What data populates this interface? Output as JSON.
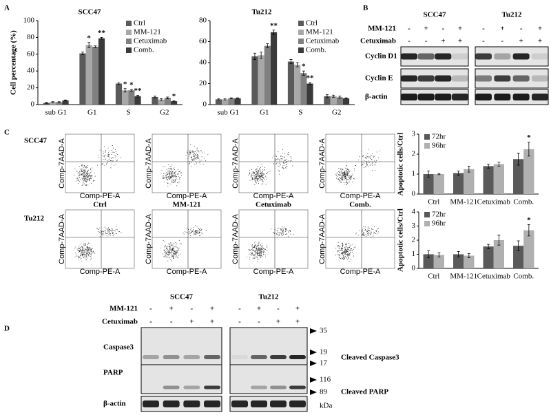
{
  "labels": [
    "A",
    "B",
    "C",
    "D"
  ],
  "chart_data": [
    {
      "type": "bar",
      "title": "SCC47",
      "ylabel": "Cell percentage (%)",
      "categories": [
        "sub G1",
        "G1",
        "S",
        "G2"
      ],
      "ylim": [
        0,
        100
      ],
      "yticks": [
        0,
        20,
        40,
        60,
        80,
        100
      ],
      "legend": "upper right",
      "series": [
        {
          "name": "Ctrl",
          "color": "#5a5a5a",
          "values": [
            2,
            61,
            25,
            9
          ],
          "errors": [
            0.5,
            1.5,
            1,
            1
          ],
          "labels": [
            null,
            null,
            null,
            null
          ]
        },
        {
          "name": "MM-121",
          "color": "#a8a8a8",
          "values": [
            3,
            71,
            17,
            6
          ],
          "errors": [
            0.5,
            3,
            2,
            1
          ],
          "labels": [
            null,
            "*",
            "*",
            null
          ]
        },
        {
          "name": "Cetuximab",
          "color": "#808080",
          "values": [
            3,
            69,
            17,
            8
          ],
          "errors": [
            0.5,
            1,
            1,
            1
          ],
          "labels": [
            null,
            null,
            "*",
            null
          ]
        },
        {
          "name": "Comb.",
          "color": "#3a3a3a",
          "values": [
            5,
            79,
            10,
            4
          ],
          "errors": [
            0.5,
            1,
            1,
            0.5
          ],
          "labels": [
            null,
            "**",
            "**",
            "*"
          ]
        }
      ]
    },
    {
      "type": "bar",
      "title": "Tu212",
      "categories": [
        "sub G1",
        "G1",
        "S",
        "G2"
      ],
      "ylim": [
        0,
        80
      ],
      "yticks": [
        0,
        20,
        40,
        60,
        80
      ],
      "legend": "upper right",
      "series": [
        {
          "name": "Ctrl",
          "color": "#5a5a5a",
          "values": [
            5,
            46,
            41,
            8
          ],
          "errors": [
            0.5,
            3,
            2,
            1.5
          ],
          "labels": [
            null,
            null,
            null,
            null
          ]
        },
        {
          "name": "MM-121",
          "color": "#a8a8a8",
          "values": [
            5,
            47,
            38,
            8
          ],
          "errors": [
            0.5,
            3,
            2,
            1
          ],
          "labels": [
            null,
            null,
            null,
            null
          ]
        },
        {
          "name": "Cetuximab",
          "color": "#808080",
          "values": [
            6,
            56,
            30,
            7
          ],
          "errors": [
            0.5,
            2,
            2,
            1
          ],
          "labels": [
            null,
            null,
            "*",
            null
          ]
        },
        {
          "name": "Comb.",
          "color": "#3a3a3a",
          "values": [
            6,
            69,
            20,
            6
          ],
          "errors": [
            0.5,
            2,
            1,
            0.5
          ],
          "labels": [
            null,
            "**",
            "**",
            null
          ]
        }
      ]
    },
    {
      "type": "bar",
      "ylabel": "Apoptotic cells/Ctrl",
      "categories": [
        "Ctrl",
        "MM-121",
        "Cetuximab",
        "Comb."
      ],
      "ylim": [
        0,
        3
      ],
      "yticks": [
        0,
        1,
        2,
        3
      ],
      "legend": "upper left",
      "series": [
        {
          "name": "72hr",
          "color": "#5a5a5a",
          "values": [
            1.0,
            1.05,
            1.4,
            1.75
          ],
          "errors": [
            0.15,
            0.1,
            0.1,
            0.3
          ],
          "labels": [
            null,
            null,
            null,
            null
          ]
        },
        {
          "name": "96hr",
          "color": "#b0b0b0",
          "values": [
            1.0,
            1.25,
            1.5,
            2.25
          ],
          "errors": [
            0.03,
            0.15,
            0.1,
            0.35
          ],
          "labels": [
            null,
            null,
            null,
            "*"
          ]
        }
      ]
    },
    {
      "type": "bar",
      "ylabel": "Apoptotic cells/Ctrl",
      "categories": [
        "Ctrl",
        "MM-121",
        "Cetuximab",
        "Comb."
      ],
      "ylim": [
        0,
        4
      ],
      "yticks": [
        0,
        1,
        2,
        3,
        4
      ],
      "legend": "upper left",
      "series": [
        {
          "name": "72hr",
          "color": "#5a5a5a",
          "values": [
            1.0,
            1.0,
            1.55,
            1.6
          ],
          "errors": [
            0.25,
            0.2,
            0.15,
            0.35
          ],
          "labels": [
            null,
            null,
            null,
            null
          ]
        },
        {
          "name": "96hr",
          "color": "#b0b0b0",
          "values": [
            0.95,
            0.9,
            2.0,
            2.7
          ],
          "errors": [
            0.15,
            0.15,
            0.35,
            0.4
          ],
          "labels": [
            null,
            null,
            null,
            "*"
          ]
        }
      ]
    }
  ],
  "blot_b": {
    "cell_lines": [
      "SCC47",
      "Tu212"
    ],
    "treatments": [
      {
        "name": "MM-121",
        "signs": [
          "-",
          "+",
          "-",
          "+"
        ]
      },
      {
        "name": "Cetuximab",
        "signs": [
          "-",
          "-",
          "+",
          "+"
        ]
      }
    ],
    "proteins": [
      "Cyclin D1",
      "Cyclin E",
      "β-actin"
    ]
  },
  "flow": {
    "rows": [
      "SCC47",
      "Tu212"
    ],
    "treatments": [
      "Ctrl",
      "MM-121",
      "Cetuximab",
      "Comb."
    ],
    "x_axis": "Comp-PE-A",
    "y_axis": "Comp-7AAD-A"
  },
  "blot_d": {
    "cell_lines": [
      "SCC47",
      "Tu212"
    ],
    "treatments": [
      {
        "name": "MM-121",
        "signs": [
          "-",
          "+",
          "-",
          "+"
        ]
      },
      {
        "name": "Cetuximab",
        "signs": [
          "-",
          "-",
          "+",
          "+"
        ]
      }
    ],
    "proteins": [
      "Caspase3",
      "PARP",
      "β-actin"
    ],
    "markers": [
      35,
      19,
      17,
      116,
      89
    ],
    "cleaved": [
      "Cleaved Caspase3",
      "Cleaved PARP"
    ],
    "unit": "kDa"
  }
}
